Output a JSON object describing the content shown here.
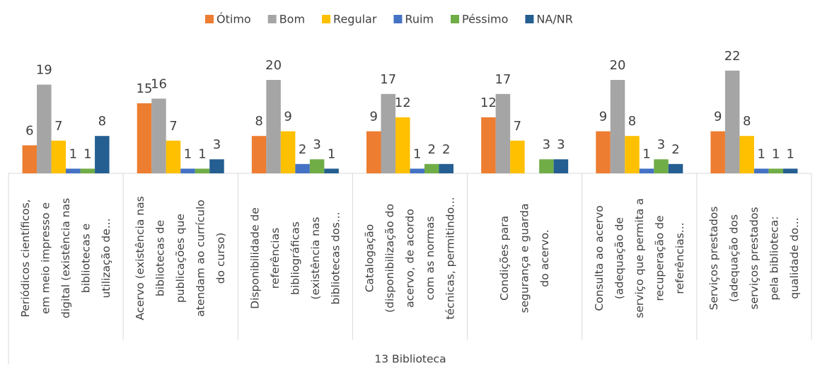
{
  "chart_data": {
    "type": "bar",
    "x_label": "13 Biblioteca",
    "categories": [
      "Periódicos científicos,\nem meio impresso e\ndigital (existência nas\nbibliotecas e\nutilização de...",
      "Acervo (existência nas\nbibliotecas de\npublicações que\natendam ao currículo\ndo curso)",
      "Disponibilidade de\nreferências\nbibliográficas\n(existência nas\nbibliotecas dos...",
      "Catalogação\n(disponibilização do\nacervo, de acordo\ncom as normas\ntécnicas, permitindo...",
      "Condições para\nsegurança e guarda\ndo acervo.",
      "Consulta ao acervo\n(adequação de\nserviço que permita a\nrecuperação de\nreferências...",
      "Serviços prestados\n(adequação dos\nserviços prestados\npela biblioteca:\nqualidade do..."
    ],
    "series": [
      {
        "name": "Ótimo",
        "color": "#ed7d31",
        "values": [
          6,
          15,
          8,
          9,
          12,
          9,
          9
        ]
      },
      {
        "name": "Bom",
        "color": "#a5a5a5",
        "values": [
          19,
          16,
          20,
          17,
          17,
          20,
          22
        ]
      },
      {
        "name": "Regular",
        "color": "#ffc000",
        "values": [
          7,
          7,
          9,
          12,
          7,
          8,
          8
        ]
      },
      {
        "name": "Ruim",
        "color": "#4472c4",
        "values": [
          1,
          1,
          2,
          1,
          null,
          1,
          1
        ]
      },
      {
        "name": "Péssimo",
        "color": "#70ad47",
        "values": [
          1,
          1,
          3,
          2,
          3,
          3,
          1
        ]
      },
      {
        "name": "NA/NR",
        "color": "#255e91",
        "values": [
          8,
          3,
          1,
          2,
          3,
          2,
          1
        ]
      }
    ],
    "ylim": [
      0,
      25
    ],
    "legend": "top"
  }
}
